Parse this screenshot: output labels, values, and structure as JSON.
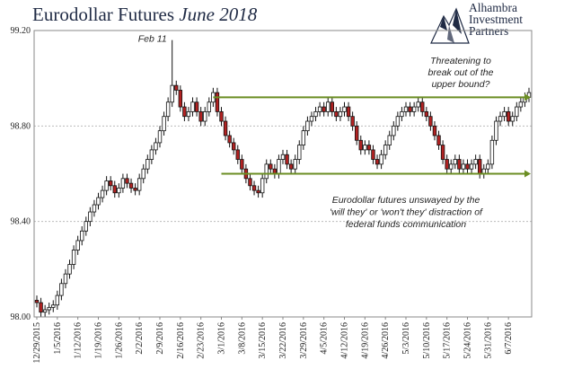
{
  "title": {
    "main": "Eurodollar Futures",
    "italic": "June 2018"
  },
  "logo": {
    "lines": [
      "Alhambra",
      "Investment",
      "Partners"
    ],
    "icon": "mountain-logo-icon"
  },
  "chart_data": {
    "type": "candlestick",
    "title": "Eurodollar Futures June 2018",
    "ylim": [
      98.0,
      99.2
    ],
    "y_ticks": [
      "98.00",
      "98.40",
      "98.80",
      "99.20"
    ],
    "y_tick_values": [
      98.0,
      98.4,
      98.8,
      99.2
    ],
    "grid": "horizontal-dashed",
    "x_tick_labels": [
      "12/29/2015",
      "1/5/2016",
      "1/12/2016",
      "1/19/2016",
      "1/26/2016",
      "2/2/2016",
      "2/9/2016",
      "2/16/2016",
      "2/23/2016",
      "3/1/2016",
      "3/8/2016",
      "3/15/2016",
      "3/22/2016",
      "3/29/2016",
      "4/5/2016",
      "4/12/2016",
      "4/19/2016",
      "4/26/2016",
      "5/3/2016",
      "5/10/2016",
      "5/17/2016",
      "5/24/2016",
      "5/31/2016",
      "6/7/2016"
    ],
    "x_tick_index": [
      0,
      5,
      10,
      15,
      20,
      25,
      30,
      35,
      40,
      45,
      50,
      55,
      60,
      65,
      70,
      75,
      80,
      85,
      90,
      95,
      100,
      105,
      110,
      115
    ],
    "close": [
      98.06,
      98.02,
      98.03,
      98.04,
      98.05,
      98.09,
      98.14,
      98.18,
      98.22,
      98.28,
      98.32,
      98.36,
      98.4,
      98.44,
      98.47,
      98.5,
      98.53,
      98.57,
      98.55,
      98.52,
      98.54,
      98.58,
      98.56,
      98.54,
      98.53,
      98.58,
      98.62,
      98.66,
      98.7,
      98.73,
      98.78,
      98.84,
      98.9,
      98.97,
      98.95,
      98.88,
      98.84,
      98.86,
      98.9,
      98.86,
      98.82,
      98.86,
      98.9,
      98.94,
      98.86,
      98.82,
      98.76,
      98.73,
      98.7,
      98.66,
      98.62,
      98.58,
      98.55,
      98.53,
      98.52,
      98.58,
      98.64,
      98.62,
      98.6,
      98.66,
      98.68,
      98.64,
      98.62,
      98.66,
      98.72,
      98.78,
      98.82,
      98.84,
      98.86,
      98.88,
      98.86,
      98.9,
      98.86,
      98.84,
      98.86,
      98.88,
      98.84,
      98.8,
      98.74,
      98.7,
      98.72,
      98.7,
      98.66,
      98.64,
      98.68,
      98.72,
      98.76,
      98.8,
      98.84,
      98.86,
      98.88,
      98.86,
      98.88,
      98.9,
      98.86,
      98.84,
      98.8,
      98.76,
      98.72,
      98.66,
      98.62,
      98.64,
      98.66,
      98.62,
      98.64,
      98.62,
      98.64,
      98.66,
      98.6,
      98.62,
      98.64,
      98.74,
      98.82,
      98.84,
      98.86,
      98.82,
      98.84,
      98.88,
      98.9,
      98.92,
      98.94
    ],
    "highlights": [
      {
        "label": "Feb 11",
        "index": 33,
        "high": 99.16
      }
    ],
    "annotations": [
      {
        "id": "threat",
        "lines": [
          "Threatening to",
          "break out of the",
          "upper bound?"
        ]
      },
      {
        "id": "unswayed",
        "lines": [
          "Eurodollar futures unswayed by the",
          "'will they' or 'won't they' distraction of",
          "federal funds communication"
        ]
      }
    ],
    "bounds": {
      "upper": {
        "value": 98.92,
        "start_index": 43
      },
      "lower": {
        "value": 98.6,
        "start_index": 45
      }
    },
    "colors": {
      "up": "#ffffff",
      "down": "#b22222",
      "line": "#6b8e23",
      "grid": "#bbbbbb"
    }
  }
}
